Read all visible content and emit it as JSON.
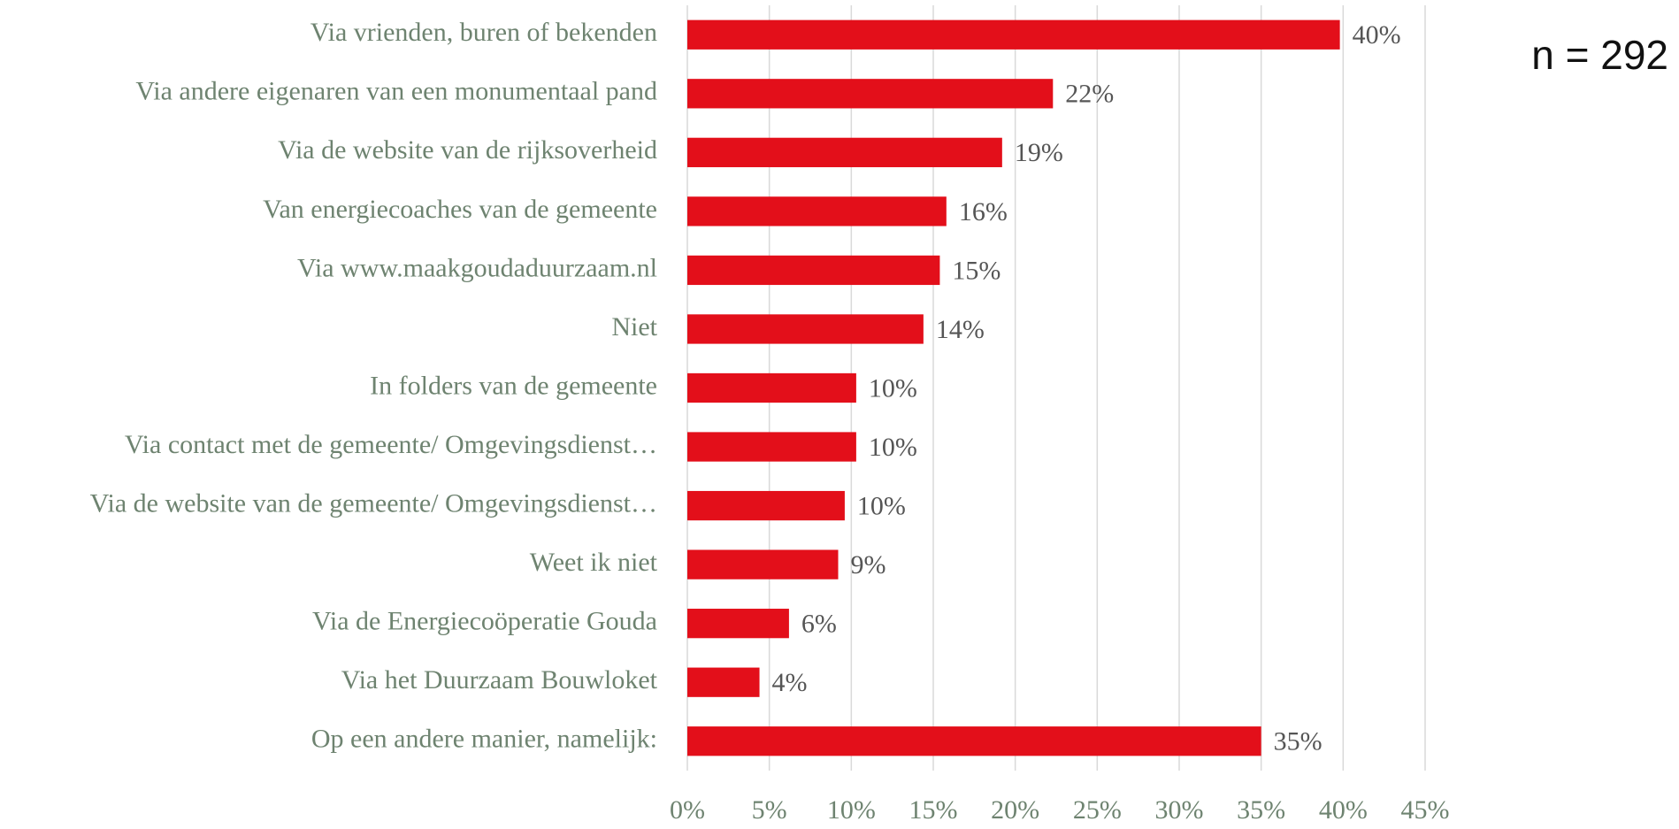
{
  "chart_data": {
    "type": "bar",
    "orientation": "horizontal",
    "annotation": "n = 292",
    "categories": [
      "Via vrienden, buren of bekenden",
      "Via andere eigenaren van een monumentaal pand",
      "Via de website van de rijksoverheid",
      "Van energiecoaches van de gemeente",
      "Via www.maakgoudaduurzaam.nl",
      "Niet",
      "In folders van de gemeente",
      "Via contact met de gemeente/ Omgevingsdienst…",
      "Via de website van de gemeente/ Omgevingsdienst…",
      "Weet ik niet",
      "Via de Energiecoöperatie Gouda",
      "Via het Duurzaam Bouwloket",
      "Op een andere manier, namelijk:"
    ],
    "values": [
      39.8,
      22.3,
      19.2,
      15.8,
      15.4,
      14.4,
      10.3,
      10.3,
      9.6,
      9.2,
      6.2,
      4.4,
      35.0
    ],
    "value_labels": [
      "40%",
      "22%",
      "19%",
      "16%",
      "15%",
      "14%",
      "10%",
      "10%",
      "10%",
      "9%",
      "6%",
      "4%",
      "35%"
    ],
    "color": "#e30f1a",
    "xlim": [
      0,
      45
    ],
    "xticks": [
      {
        "value": 0,
        "label": "0%"
      },
      {
        "value": 5,
        "label": "5%"
      },
      {
        "value": 10,
        "label": "10%"
      },
      {
        "value": 15,
        "label": "15%"
      },
      {
        "value": 20,
        "label": "20%"
      },
      {
        "value": 25,
        "label": "25%"
      },
      {
        "value": 30,
        "label": "30%"
      },
      {
        "value": 35,
        "label": "35%"
      },
      {
        "value": 40,
        "label": "40%"
      },
      {
        "value": 45,
        "label": "45%"
      }
    ],
    "grid": true
  }
}
